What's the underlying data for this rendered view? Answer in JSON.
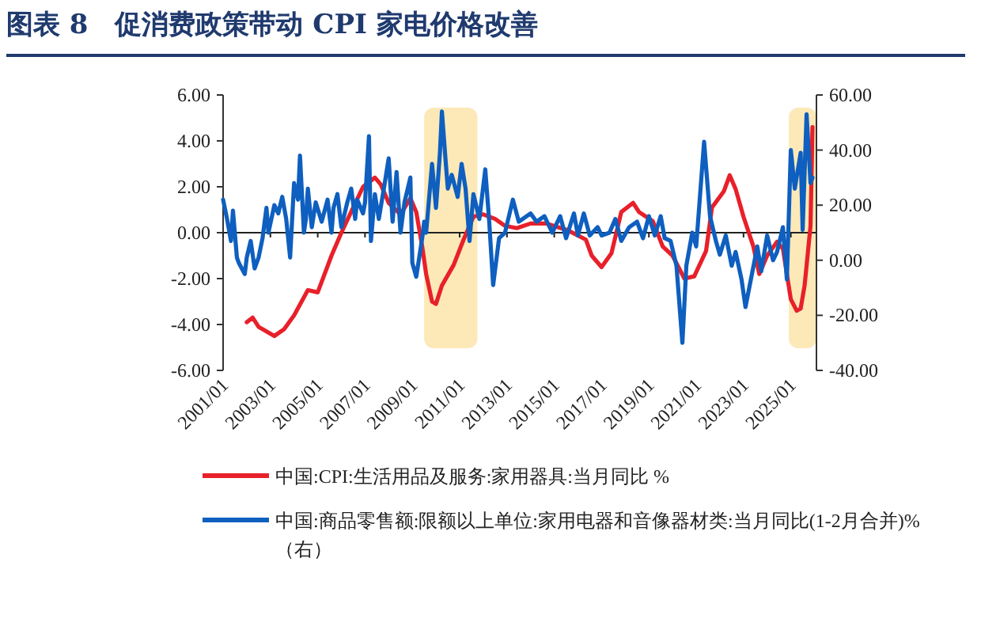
{
  "chart_data": {
    "type": "line",
    "title": "图表 8　促消费政策带动 CPI 家电价格改善",
    "xlim": [
      "2001-01",
      "2026-02"
    ],
    "xticks": [
      {
        "value": "2001-01",
        "label": "2001/01"
      },
      {
        "value": "2003-01",
        "label": "2003/01"
      },
      {
        "value": "2005-01",
        "label": "2005/01"
      },
      {
        "value": "2007-01",
        "label": "2007/01"
      },
      {
        "value": "2009-01",
        "label": "2009/01"
      },
      {
        "value": "2011-01",
        "label": "2011/01"
      },
      {
        "value": "2013-01",
        "label": "2013/01"
      },
      {
        "value": "2015-01",
        "label": "2015/01"
      },
      {
        "value": "2017-01",
        "label": "2017/01"
      },
      {
        "value": "2019-01",
        "label": "2019/01"
      },
      {
        "value": "2021-01",
        "label": "2021/01"
      },
      {
        "value": "2023-01",
        "label": "2023/01"
      },
      {
        "value": "2025-01",
        "label": "2025/01"
      }
    ],
    "ylim": [
      -6,
      6
    ],
    "yticks": [
      {
        "value": -6,
        "label": "-6.00"
      },
      {
        "value": -4,
        "label": "-4.00"
      },
      {
        "value": -2,
        "label": "-2.00"
      },
      {
        "value": 0,
        "label": "0.00"
      },
      {
        "value": 2,
        "label": "2.00"
      },
      {
        "value": 4,
        "label": "4.00"
      },
      {
        "value": 6,
        "label": "6.00"
      }
    ],
    "y2lim": [
      -40,
      60
    ],
    "y2ticks": [
      {
        "value": -40,
        "label": "-40.00"
      },
      {
        "value": -20,
        "label": "-20.00"
      },
      {
        "value": 0,
        "label": "0.00"
      },
      {
        "value": 20,
        "label": "20.00"
      },
      {
        "value": 40,
        "label": "40.00"
      },
      {
        "value": 60,
        "label": "60.00"
      }
    ],
    "legend": "bottom",
    "line_style": "solid",
    "marker": "none",
    "bands": [
      {
        "axis": "x",
        "from": "2009-07",
        "to": "2011-10",
        "label": null,
        "color": "#fde9b8"
      },
      {
        "axis": "x",
        "from": "2024-12",
        "to": "2026-02",
        "label": null,
        "color": "#fde9b8"
      }
    ],
    "series": [
      {
        "name": "中国:CPI:生活用品及服务:家用器具:当月同比 %",
        "color": "#e8202a",
        "x": [
          "2002-01",
          "2002-04",
          "2002-07",
          "2003-03",
          "2003-08",
          "2004-01",
          "2004-08",
          "2005-01",
          "2005-08",
          "2006-01",
          "2006-07",
          "2006-12",
          "2007-06",
          "2007-09",
          "2008-01",
          "2008-07",
          "2008-12",
          "2009-03",
          "2009-06",
          "2009-08",
          "2009-11",
          "2010-01",
          "2010-04",
          "2010-10",
          "2011-03",
          "2011-08",
          "2012-01",
          "2012-07",
          "2012-12",
          "2013-06",
          "2014-01",
          "2014-09",
          "2015-08",
          "2016-05",
          "2016-08",
          "2017-01",
          "2017-06",
          "2017-11",
          "2018-05",
          "2018-08",
          "2019-03",
          "2019-08",
          "2020-01",
          "2020-07",
          "2020-12",
          "2021-06",
          "2021-09",
          "2022-03",
          "2022-06",
          "2022-09",
          "2023-01",
          "2023-06",
          "2023-09",
          "2024-01",
          "2024-06",
          "2024-09",
          "2025-01",
          "2025-04",
          "2025-06",
          "2025-08",
          "2025-11",
          "2025-12"
        ],
        "values": [
          -3.9,
          -3.7,
          -4.1,
          -4.5,
          -4.2,
          -3.6,
          -2.5,
          -2.6,
          -1.0,
          0.0,
          1.1,
          2.0,
          2.4,
          2.1,
          1.3,
          0.8,
          1.5,
          0.9,
          -0.6,
          -1.8,
          -3.0,
          -3.1,
          -2.3,
          -1.4,
          -0.3,
          0.7,
          0.8,
          0.6,
          0.3,
          0.2,
          0.4,
          0.4,
          0.1,
          -0.3,
          -1.0,
          -1.5,
          -0.9,
          0.9,
          1.3,
          0.9,
          0.5,
          -0.6,
          -1.0,
          -2.0,
          -1.9,
          -0.8,
          1.1,
          1.8,
          2.5,
          1.9,
          0.7,
          -0.6,
          -1.8,
          -1.0,
          -0.4,
          -0.7,
          -2.9,
          -3.4,
          -3.3,
          -2.3,
          0.3,
          4.6
        ]
      },
      {
        "name": "中国:商品零售额:限额以上单位:家用电器和音像器材类:当月同比(1-2月合并)%（右）",
        "color": "#0e5fbf",
        "axis": "y2",
        "x": [
          "2001-01",
          "2001-03",
          "2001-05",
          "2001-06",
          "2001-08",
          "2001-09",
          "2001-12",
          "2002-01",
          "2002-03",
          "2002-05",
          "2002-07",
          "2002-09",
          "2002-11",
          "2002-12",
          "2003-03",
          "2003-05",
          "2003-07",
          "2003-09",
          "2003-11",
          "2004-01",
          "2004-03",
          "2004-04",
          "2004-06",
          "2004-07",
          "2004-08",
          "2004-10",
          "2004-12",
          "2005-03",
          "2005-06",
          "2005-08",
          "2005-09",
          "2005-11",
          "2006-01",
          "2006-04",
          "2006-06",
          "2006-08",
          "2006-09",
          "2006-12",
          "2007-01",
          "2007-03",
          "2007-04",
          "2007-06",
          "2007-08",
          "2007-11",
          "2008-01",
          "2008-03",
          "2008-05",
          "2008-07",
          "2008-09",
          "2008-12",
          "2009-01",
          "2009-03",
          "2009-06",
          "2009-07",
          "2009-08",
          "2009-11",
          "2010-01",
          "2010-03",
          "2010-04",
          "2010-06",
          "2010-07",
          "2010-09",
          "2010-12",
          "2011-02",
          "2011-04",
          "2011-06",
          "2011-08",
          "2011-11",
          "2012-02",
          "2012-04",
          "2012-06",
          "2012-09",
          "2012-12",
          "2013-04",
          "2013-07",
          "2013-09",
          "2014-01",
          "2014-04",
          "2014-08",
          "2014-12",
          "2015-04",
          "2015-07",
          "2015-11",
          "2016-01",
          "2016-04",
          "2016-07",
          "2016-11",
          "2017-01",
          "2017-05",
          "2017-08",
          "2017-11",
          "2018-03",
          "2018-07",
          "2018-10",
          "2019-01",
          "2019-04",
          "2019-07",
          "2019-09",
          "2019-12",
          "2020-03",
          "2020-06",
          "2020-08",
          "2020-11",
          "2021-01",
          "2021-05",
          "2021-08",
          "2021-11",
          "2022-01",
          "2022-04",
          "2022-07",
          "2022-09",
          "2022-12",
          "2023-02",
          "2023-05",
          "2023-08",
          "2023-10",
          "2024-01",
          "2024-04",
          "2024-06",
          "2024-09",
          "2024-11",
          "2025-01",
          "2025-03",
          "2025-06",
          "2025-07",
          "2025-09",
          "2025-11",
          "2025-12"
        ],
        "values": [
          22,
          15,
          7,
          18,
          1,
          -1,
          -5,
          1,
          7,
          -3,
          1,
          8,
          19,
          10,
          20,
          17,
          23,
          15,
          1,
          28,
          22,
          38,
          10,
          15,
          26,
          12,
          21,
          14,
          22,
          10,
          19,
          24,
          12,
          21,
          26,
          15,
          22,
          17,
          21,
          45,
          7,
          24,
          15,
          28,
          37,
          14,
          32,
          10,
          21,
          30,
          -1,
          -6,
          8,
          14,
          10,
          35,
          19,
          39,
          54,
          35,
          26,
          31,
          23,
          35,
          26,
          7,
          24,
          15,
          33,
          14,
          -9,
          8,
          10,
          22,
          14,
          15,
          17,
          14,
          16,
          10,
          16,
          8,
          17,
          9,
          17,
          9,
          12,
          9,
          10,
          15,
          7,
          12,
          14,
          8,
          16,
          9,
          16,
          8,
          7,
          -2,
          -30,
          -2,
          10,
          5,
          43,
          16,
          7,
          2,
          9,
          -2,
          3,
          -7,
          -17,
          -6,
          5,
          -4,
          9,
          0,
          3,
          12,
          -7,
          40,
          26,
          39,
          11,
          53,
          28,
          30
        ]
      }
    ]
  }
}
